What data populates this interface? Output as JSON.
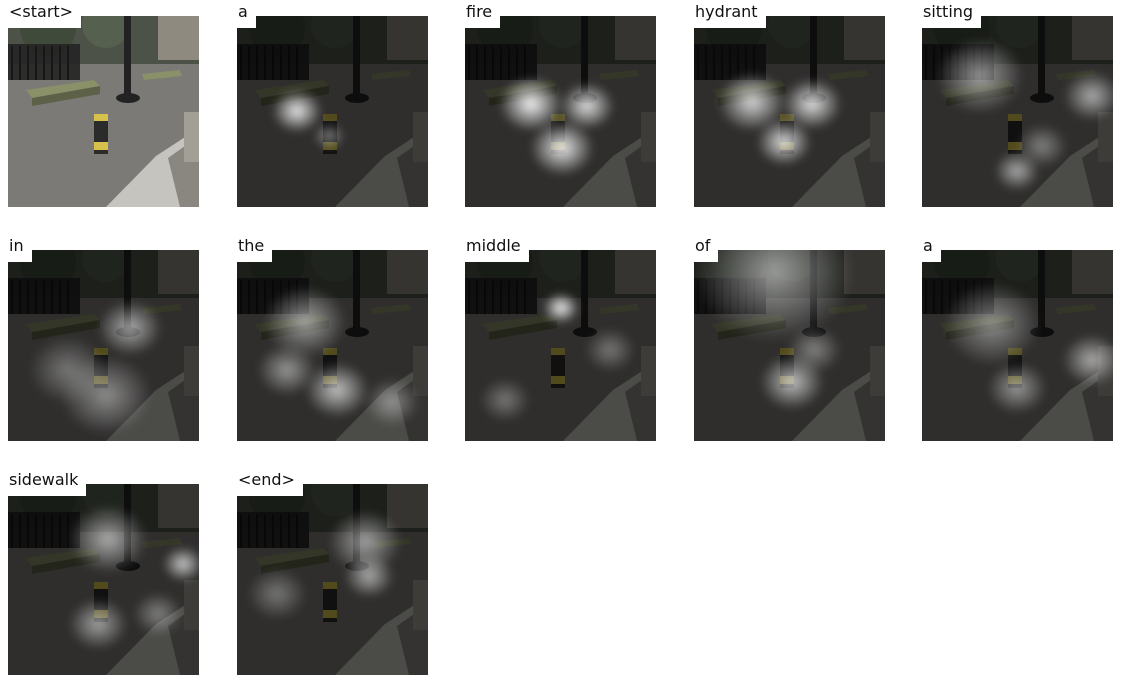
{
  "tokens": [
    "<start>",
    "a",
    "fire",
    "hydrant",
    "sitting",
    "in",
    "the",
    "middle",
    "of",
    "a",
    "sidewalk",
    "<end>"
  ],
  "colors": {
    "background": "#ffffff",
    "text": "#111111",
    "heat_glow": "#ffffff",
    "dim_overlay": "#000000",
    "hydrant_yellow": "#d6c24a",
    "hydrant_dark": "#2b2b2b",
    "bench_wood": "#8a9168"
  }
}
